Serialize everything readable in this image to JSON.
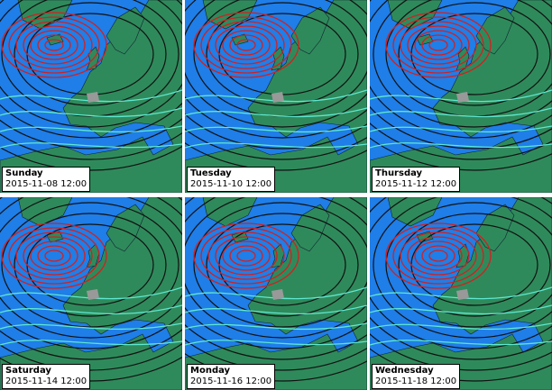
{
  "panels": [
    {
      "day": "Sunday",
      "datetime": "2015-11-08 12:00"
    },
    {
      "day": "Tuesday",
      "datetime": "2015-11-10 12:00"
    },
    {
      "day": "Thursday",
      "datetime": "2015-11-12 12:00"
    },
    {
      "day": "Saturday",
      "datetime": "2015-11-14 12:00"
    },
    {
      "day": "Monday",
      "datetime": "2015-11-16 12:00"
    },
    {
      "day": "Wednesday",
      "datetime": "2015-11-18 12:00"
    }
  ]
}
